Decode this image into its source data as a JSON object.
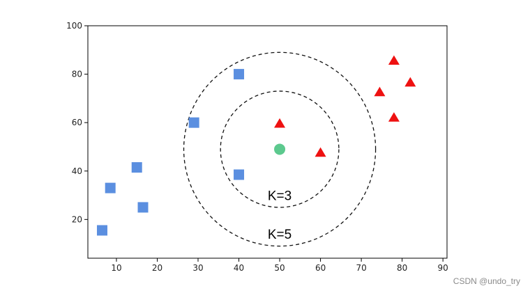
{
  "chart_data": {
    "type": "scatter",
    "xlim": [
      3,
      91
    ],
    "ylim": [
      4,
      100
    ],
    "x_ticks": [
      10,
      20,
      30,
      40,
      50,
      60,
      70,
      80,
      90
    ],
    "y_ticks": [
      20,
      40,
      60,
      80,
      100
    ],
    "grid": false,
    "series": [
      {
        "marker": "square",
        "color": "#5b8fe0",
        "points": [
          [
            6.5,
            15.5
          ],
          [
            8.5,
            33
          ],
          [
            15,
            41.5
          ],
          [
            16.5,
            25
          ],
          [
            29,
            60
          ],
          [
            40,
            80
          ],
          [
            40,
            38.5
          ]
        ]
      },
      {
        "marker": "triangle",
        "color": "#ee1111",
        "points": [
          [
            50,
            59.5
          ],
          [
            60,
            47.5
          ],
          [
            74.5,
            72.5
          ],
          [
            78,
            85.5
          ],
          [
            78,
            62
          ],
          [
            82,
            76.5
          ]
        ]
      },
      {
        "marker": "circle",
        "color": "#5cc98e",
        "points": [
          [
            50,
            49
          ]
        ]
      }
    ],
    "circles": [
      {
        "cx": 50,
        "cy": 49,
        "rx": 14.5,
        "ry": 24,
        "label": "K=3",
        "label_x": 50,
        "label_y": 30
      },
      {
        "cx": 50,
        "cy": 49,
        "rx": 23.5,
        "ry": 40,
        "label": "K=5",
        "label_y": 14,
        "label_x": 50
      }
    ]
  },
  "watermark": "CSDN @undo_try"
}
